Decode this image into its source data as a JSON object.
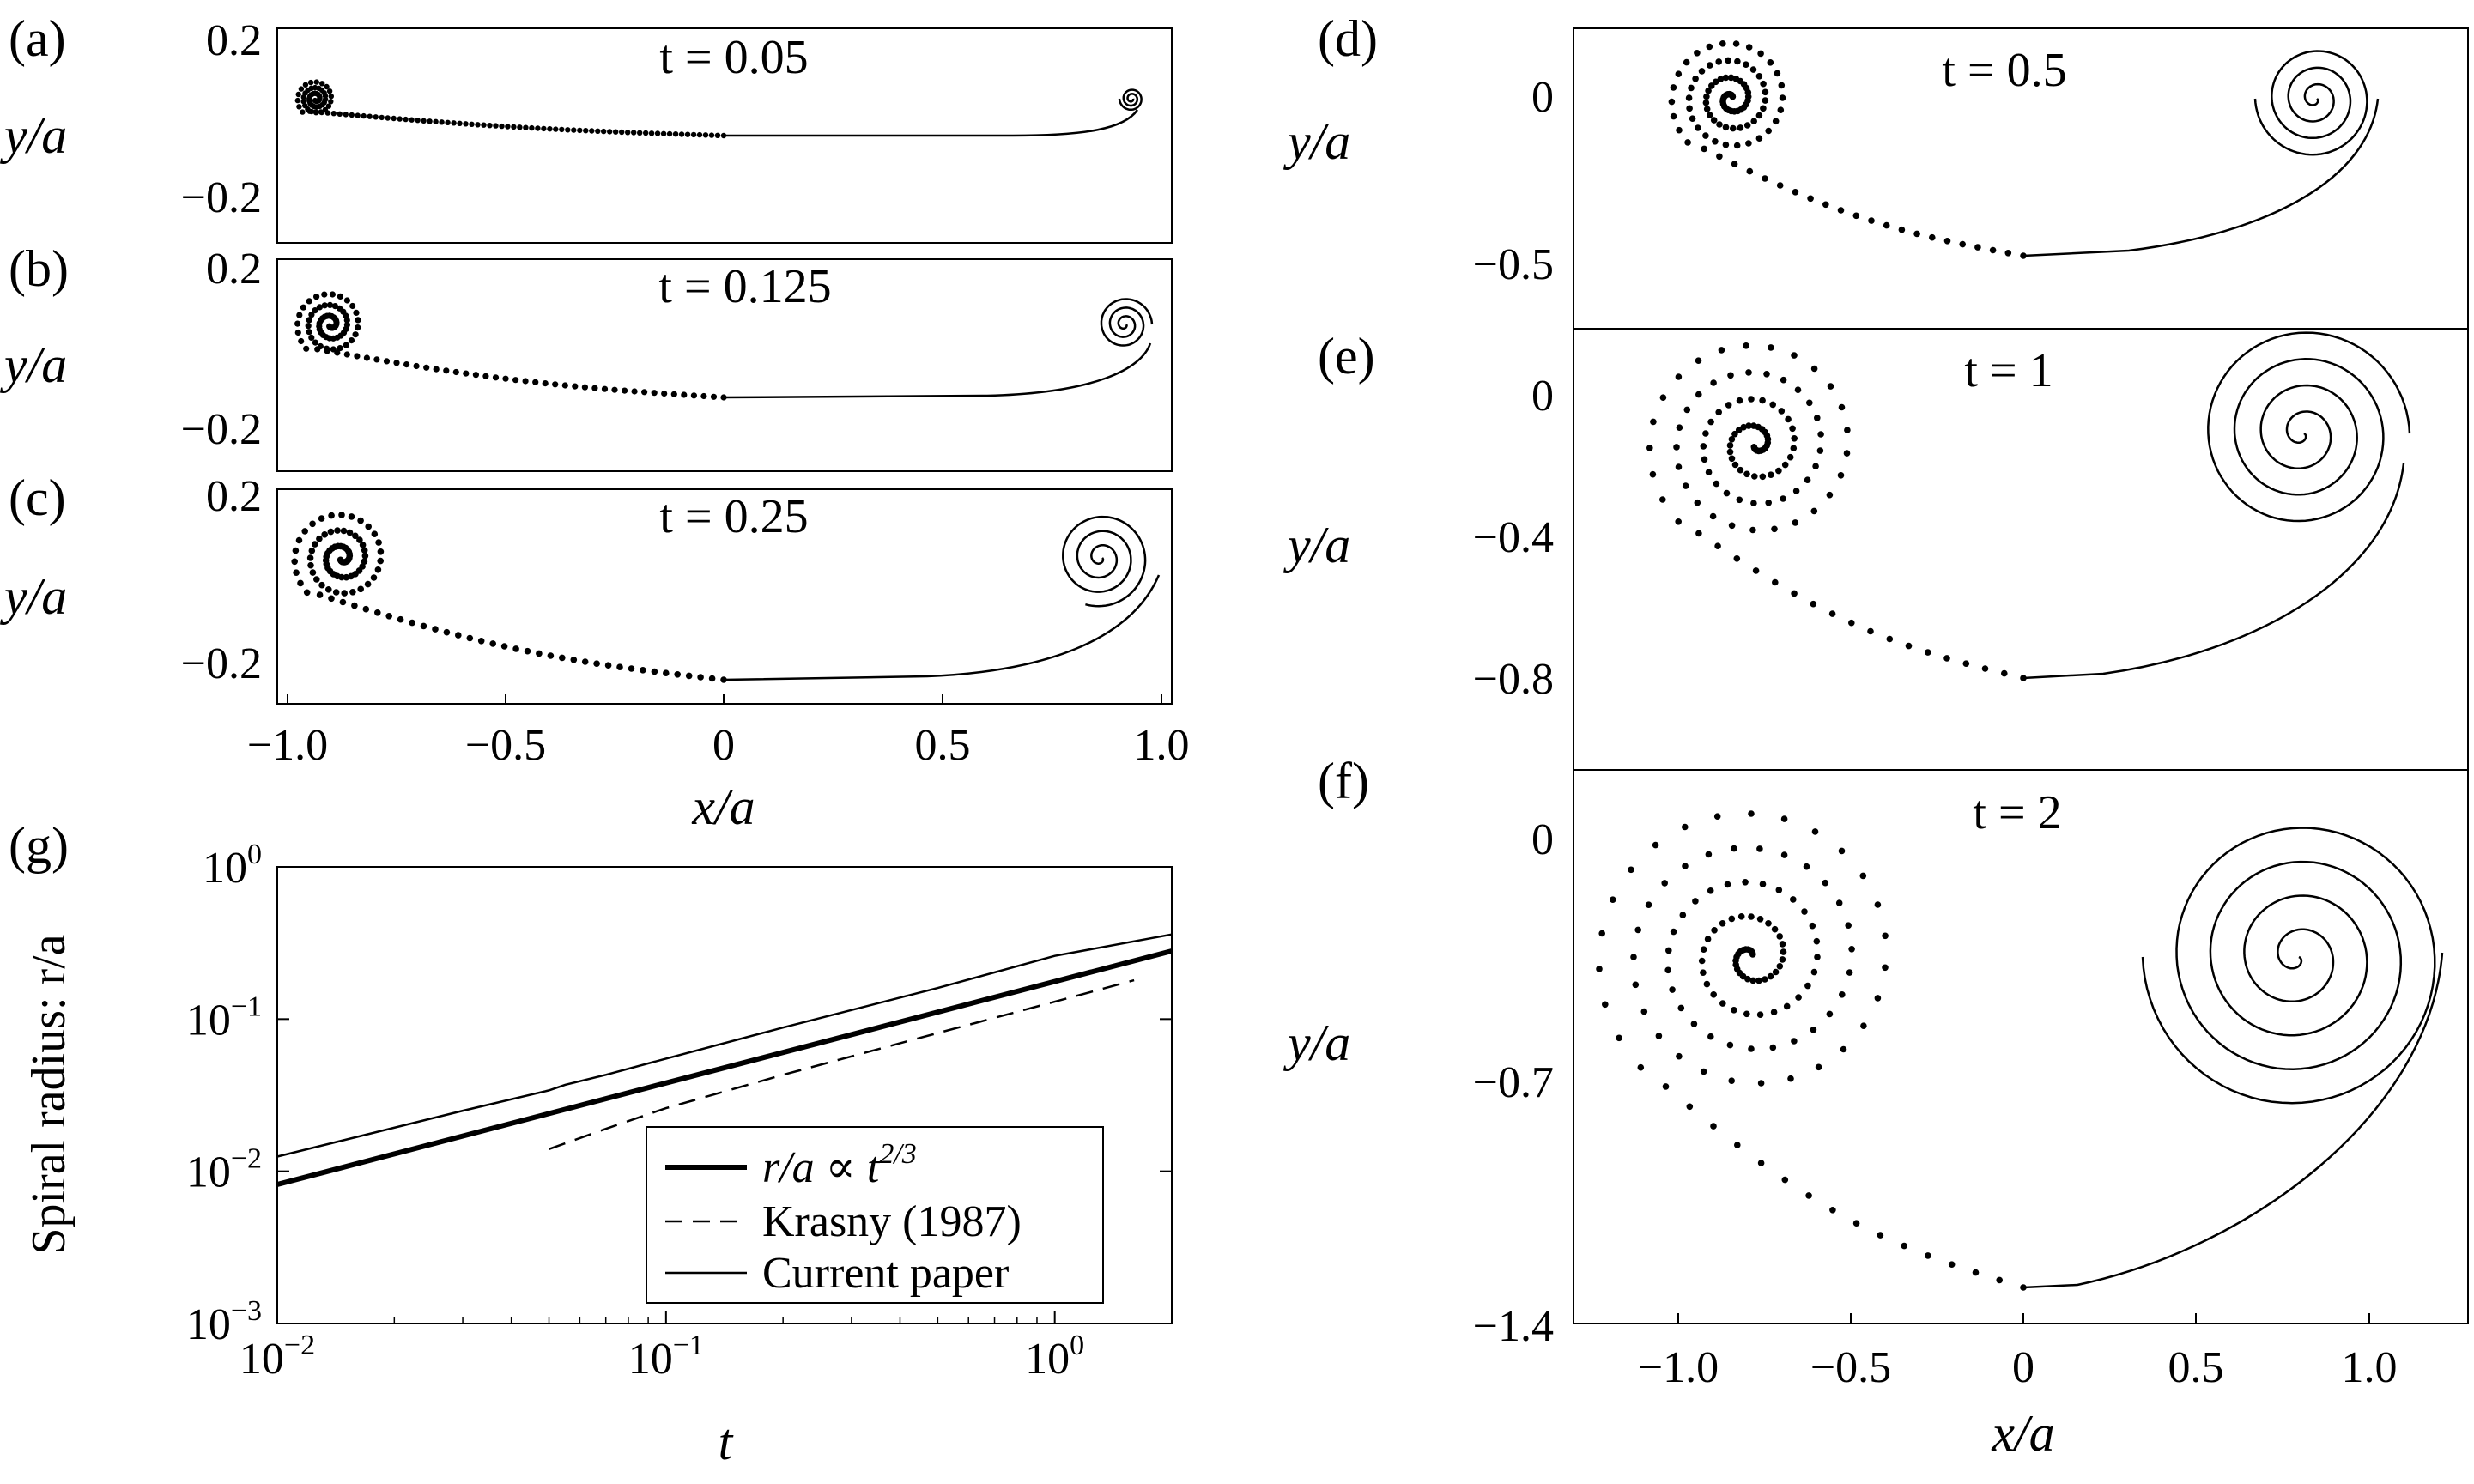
{
  "panels": [
    {
      "id": "a",
      "panel_label": "(a)",
      "time_label": "t = 0.05",
      "ylabel": "y/a",
      "yticks": [
        {
          "label": "0.2"
        },
        {
          "label": "−0.2"
        }
      ]
    },
    {
      "id": "b",
      "panel_label": "(b)",
      "time_label": "t = 0.125",
      "ylabel": "y/a",
      "yticks": [
        {
          "label": "0.2"
        },
        {
          "label": "−0.2"
        }
      ]
    },
    {
      "id": "c",
      "panel_label": "(c)",
      "time_label": "t = 0.25",
      "ylabel": "y/a",
      "yticks": [
        {
          "label": "0.2"
        },
        {
          "label": "−0.2"
        }
      ],
      "xticks": [
        {
          "label": "−1.0"
        },
        {
          "label": "−0.5"
        },
        {
          "label": "0"
        },
        {
          "label": "0.5"
        },
        {
          "label": "1.0"
        }
      ],
      "xlabel": "x/a"
    },
    {
      "id": "d",
      "panel_label": "(d)",
      "time_label": "t = 0.5",
      "ylabel": "y/a",
      "yticks": [
        {
          "label": "0"
        },
        {
          "label": "−0.5"
        }
      ]
    },
    {
      "id": "e",
      "panel_label": "(e)",
      "time_label": "t = 1",
      "ylabel": "y/a",
      "yticks": [
        {
          "label": "0"
        },
        {
          "label": "−0.4"
        },
        {
          "label": "−0.8"
        }
      ]
    },
    {
      "id": "f",
      "panel_label": "(f)",
      "time_label": "t = 2",
      "ylabel": "y/a",
      "yticks": [
        {
          "label": "0"
        },
        {
          "label": "−0.7"
        },
        {
          "label": "−1.4"
        }
      ],
      "xticks": [
        {
          "label": "−1.0"
        },
        {
          "label": "−0.5"
        },
        {
          "label": "0"
        },
        {
          "label": "0.5"
        },
        {
          "label": "1.0"
        }
      ],
      "xlabel": "x/a"
    }
  ],
  "chart_data": {
    "type": "line",
    "panel_label": "(g)",
    "xscale": "log",
    "yscale": "log",
    "xlabel": "t",
    "ylabel": "Spiral radius: r/a",
    "xlim": [
      0.01,
      2
    ],
    "ylim": [
      0.001,
      1
    ],
    "xticks": [
      {
        "value": 0.01,
        "base": "10",
        "exp": "−2"
      },
      {
        "value": 0.1,
        "base": "10",
        "exp": "−1"
      },
      {
        "value": 1,
        "base": "10",
        "exp": "0"
      }
    ],
    "yticks": [
      {
        "value": 0.001,
        "base": "10",
        "exp": "−3"
      },
      {
        "value": 0.01,
        "base": "10",
        "exp": "−2"
      },
      {
        "value": 0.1,
        "base": "10",
        "exp": "−1"
      },
      {
        "value": 1,
        "base": "10",
        "exp": "0"
      }
    ],
    "series": [
      {
        "name": "r/a ∝ t^{2/3}",
        "legend_main": "r/a ∝ t",
        "legend_exp": "2/3",
        "style": "thick",
        "x": [
          0.01,
          2
        ],
        "y": [
          0.0082,
          0.28
        ]
      },
      {
        "name": "Krasny (1987)",
        "legend_main": "Krasny (1987)",
        "style": "dashed",
        "x": [
          0.05,
          0.07,
          0.1,
          0.2,
          0.5,
          1.0,
          1.6
        ],
        "y": [
          0.014,
          0.019,
          0.026,
          0.043,
          0.081,
          0.13,
          0.18
        ]
      },
      {
        "name": "Current paper",
        "legend_main": "Current paper",
        "style": "thin",
        "x": [
          0.01,
          0.03,
          0.05,
          0.055,
          0.07,
          0.1,
          0.2,
          0.5,
          1.0,
          2.0
        ],
        "y": [
          0.0125,
          0.025,
          0.034,
          0.037,
          0.043,
          0.055,
          0.088,
          0.16,
          0.26,
          0.36
        ]
      }
    ]
  }
}
